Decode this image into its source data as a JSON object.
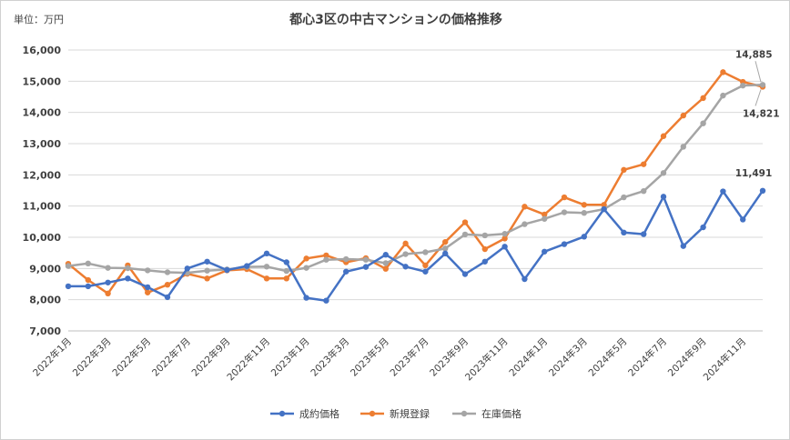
{
  "chart_data": {
    "type": "line",
    "title": "都心3区の中古マンションの価格推移",
    "unit_label": "単位：万円",
    "ylim": [
      7000,
      16000
    ],
    "y_ticks": [
      "7,000",
      "8,000",
      "9,000",
      "10,000",
      "11,000",
      "12,000",
      "13,000",
      "14,000",
      "15,000",
      "16,000"
    ],
    "y_tick_values": [
      7000,
      8000,
      9000,
      10000,
      11000,
      12000,
      13000,
      14000,
      15000,
      16000
    ],
    "grid": true,
    "legend_position": "bottom",
    "categories": [
      "2022-01",
      "2022-02",
      "2022-03",
      "2022-04",
      "2022-05",
      "2022-06",
      "2022-07",
      "2022-08",
      "2022-09",
      "2022-10",
      "2022-11",
      "2022-12",
      "2023-01",
      "2023-02",
      "2023-03",
      "2023-04",
      "2023-05",
      "2023-06",
      "2023-07",
      "2023-08",
      "2023-09",
      "2023-10",
      "2023-11",
      "2023-12",
      "2024-01",
      "2024-02",
      "2024-03",
      "2024-04",
      "2024-05",
      "2024-06",
      "2024-07",
      "2024-08",
      "2024-09",
      "2024-10",
      "2024-11",
      "2024-12"
    ],
    "x_tick_labels": [
      "2022年1月",
      "2022年3月",
      "2022年5月",
      "2022年7月",
      "2022年9月",
      "2022年11月",
      "2023年1月",
      "2023年3月",
      "2023年5月",
      "2023年7月",
      "2023年9月",
      "2023年11月",
      "2024年1月",
      "2024年3月",
      "2024年5月",
      "2024年7月",
      "2024年9月",
      "2024年11月"
    ],
    "x_tick_indices": [
      0,
      2,
      4,
      6,
      8,
      10,
      12,
      14,
      16,
      18,
      20,
      22,
      24,
      26,
      28,
      30,
      32,
      34
    ],
    "series": [
      {
        "name": "成約価格",
        "color": "#4472C4",
        "values": [
          8430,
          8430,
          8550,
          8680,
          8400,
          8080,
          9000,
          9220,
          8950,
          9080,
          9480,
          9200,
          8060,
          7970,
          8900,
          9050,
          9440,
          9060,
          8900,
          9480,
          8820,
          9220,
          9700,
          8660,
          9540,
          9780,
          10020,
          10900,
          10150,
          10100,
          11300,
          9720,
          10320,
          11470,
          10570,
          11491
        ]
      },
      {
        "name": "新規登録",
        "color": "#ED7D31",
        "values": [
          9150,
          8630,
          8200,
          9100,
          8230,
          8480,
          8830,
          8680,
          8940,
          8980,
          8680,
          8680,
          9320,
          9420,
          9200,
          9330,
          8990,
          9800,
          9100,
          9850,
          10480,
          9620,
          9960,
          10980,
          10730,
          11280,
          11040,
          11040,
          12160,
          12340,
          13240,
          13900,
          14460,
          15290,
          14980,
          14821
        ]
      },
      {
        "name": "在庫価格",
        "color": "#A5A5A5",
        "values": [
          9080,
          9160,
          9020,
          9010,
          8940,
          8880,
          8860,
          8930,
          8970,
          9050,
          9060,
          8920,
          9020,
          9280,
          9300,
          9280,
          9170,
          9460,
          9520,
          9640,
          10090,
          10060,
          10110,
          10420,
          10590,
          10800,
          10780,
          10900,
          11280,
          11480,
          12060,
          12900,
          13650,
          14540,
          14860,
          14885
        ]
      }
    ],
    "annotations": [
      {
        "text": "14,885",
        "series": "在庫価格",
        "index": 35
      },
      {
        "text": "14,821",
        "series": "新規登録",
        "index": 35
      },
      {
        "text": "11,491",
        "series": "成約価格",
        "index": 35
      }
    ]
  }
}
